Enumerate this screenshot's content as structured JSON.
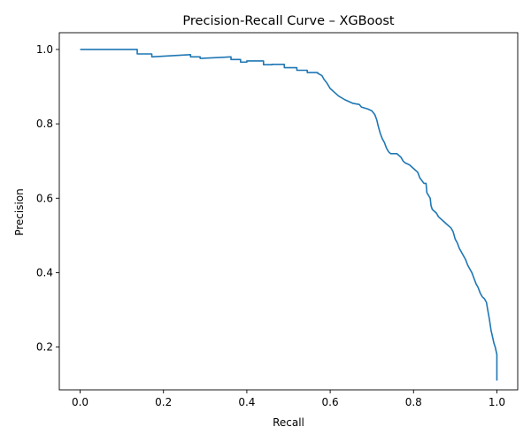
{
  "chart_data": {
    "type": "line",
    "title": "Precision-Recall Curve – XGBoost",
    "xlabel": "Recall",
    "ylabel": "Precision",
    "xlim": [
      -0.05,
      1.05
    ],
    "ylim": [
      0.085,
      1.045
    ],
    "x_ticks": [
      0.0,
      0.2,
      0.4,
      0.6,
      0.8,
      1.0
    ],
    "x_tick_labels": [
      "0.0",
      "0.2",
      "0.4",
      "0.6",
      "0.8",
      "1.0"
    ],
    "y_ticks": [
      0.2,
      0.4,
      0.6,
      0.8,
      1.0
    ],
    "y_tick_labels": [
      "0.2",
      "0.4",
      "0.6",
      "0.8",
      "1.0"
    ],
    "grid": false,
    "legend": "none",
    "line_color": "#1f77b4",
    "series": [
      {
        "x": [
          0.0,
          0.005,
          0.137,
          0.137,
          0.172,
          0.172,
          0.265,
          0.265,
          0.288,
          0.288,
          0.362,
          0.362,
          0.385,
          0.385,
          0.4,
          0.4,
          0.44,
          0.44,
          0.46,
          0.46,
          0.49,
          0.49,
          0.52,
          0.52,
          0.545,
          0.545,
          0.57,
          0.57,
          0.58,
          0.585,
          0.592,
          0.6,
          0.61,
          0.62,
          0.635,
          0.645,
          0.655,
          0.67,
          0.675,
          0.69,
          0.7,
          0.707,
          0.712,
          0.715,
          0.72,
          0.725,
          0.73,
          0.735,
          0.74,
          0.745,
          0.76,
          0.77,
          0.775,
          0.78,
          0.79,
          0.8,
          0.81,
          0.815,
          0.825,
          0.83,
          0.832,
          0.84,
          0.842,
          0.845,
          0.85,
          0.855,
          0.86,
          0.87,
          0.88,
          0.89,
          0.895,
          0.9,
          0.905,
          0.91,
          0.915,
          0.92,
          0.925,
          0.93,
          0.935,
          0.94,
          0.945,
          0.95,
          0.955,
          0.96,
          0.965,
          0.97,
          0.975,
          0.978,
          0.982,
          0.986,
          0.99,
          0.993,
          0.996,
          0.998,
          1.0,
          1.0,
          1.0
        ],
        "y": [
          1.0,
          1.0,
          1.0,
          0.988,
          0.988,
          0.98,
          0.986,
          0.98,
          0.98,
          0.976,
          0.98,
          0.973,
          0.973,
          0.966,
          0.966,
          0.969,
          0.969,
          0.959,
          0.959,
          0.96,
          0.96,
          0.951,
          0.951,
          0.944,
          0.944,
          0.938,
          0.938,
          0.936,
          0.93,
          0.92,
          0.91,
          0.895,
          0.885,
          0.875,
          0.865,
          0.86,
          0.855,
          0.852,
          0.845,
          0.84,
          0.835,
          0.825,
          0.81,
          0.795,
          0.775,
          0.76,
          0.75,
          0.735,
          0.725,
          0.72,
          0.72,
          0.71,
          0.7,
          0.695,
          0.69,
          0.68,
          0.67,
          0.655,
          0.64,
          0.64,
          0.615,
          0.6,
          0.58,
          0.57,
          0.565,
          0.56,
          0.55,
          0.54,
          0.53,
          0.52,
          0.51,
          0.49,
          0.48,
          0.465,
          0.455,
          0.445,
          0.435,
          0.42,
          0.41,
          0.4,
          0.385,
          0.37,
          0.36,
          0.345,
          0.335,
          0.33,
          0.32,
          0.3,
          0.275,
          0.245,
          0.225,
          0.21,
          0.2,
          0.19,
          0.18,
          0.15,
          0.11
        ]
      }
    ]
  }
}
